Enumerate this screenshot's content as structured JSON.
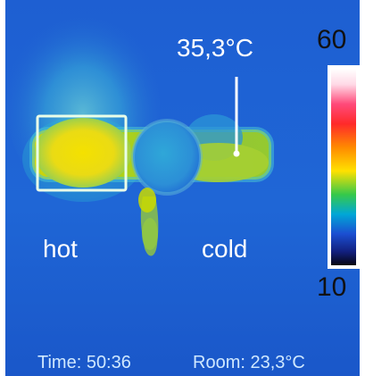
{
  "thermal_image": {
    "readout_temperature": "35,3°C",
    "hot_label": "hot",
    "cold_label": "cold",
    "scale_max": "60",
    "scale_min": "10",
    "time_text": "Time: 50:36",
    "room_text": "Room: 23,3°C"
  }
}
